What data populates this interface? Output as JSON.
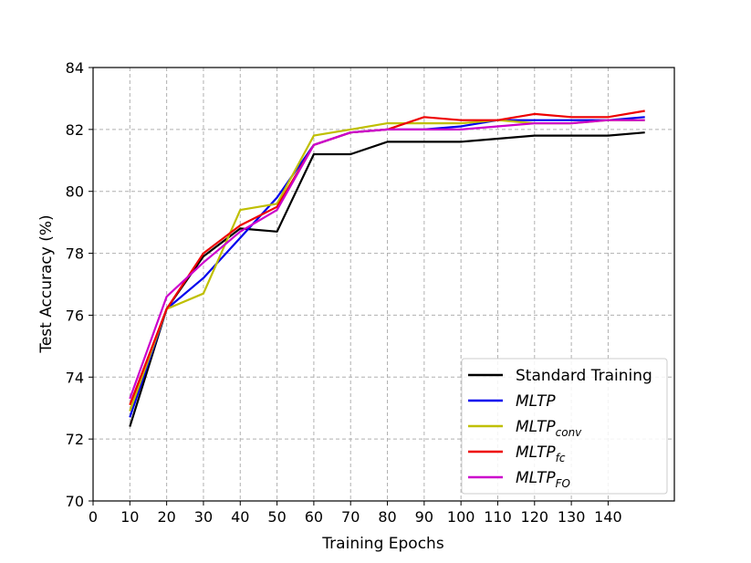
{
  "chart_data": {
    "type": "line",
    "title": "",
    "xlabel": "Training Epochs",
    "ylabel": "Test Accuracy (%)",
    "xlim": [
      0,
      158
    ],
    "ylim": [
      70,
      84
    ],
    "xticks": [
      0,
      10,
      20,
      30,
      40,
      50,
      60,
      70,
      80,
      90,
      100,
      110,
      120,
      130,
      140
    ],
    "yticks": [
      70,
      72,
      74,
      76,
      78,
      80,
      82,
      84
    ],
    "grid": true,
    "legend_position": "lower-right",
    "x": [
      10,
      20,
      30,
      40,
      50,
      60,
      70,
      80,
      90,
      100,
      110,
      120,
      130,
      140,
      150
    ],
    "series": [
      {
        "name": "Standard Training",
        "name_sub": "",
        "italic": false,
        "color": "#000000",
        "values": [
          72.4,
          76.2,
          77.9,
          78.8,
          78.7,
          81.2,
          81.2,
          81.6,
          81.6,
          81.6,
          81.7,
          81.8,
          81.8,
          81.8,
          81.9
        ]
      },
      {
        "name": "MLTP",
        "name_sub": "",
        "italic": true,
        "color": "#0000ee",
        "values": [
          72.7,
          76.2,
          77.2,
          78.5,
          79.8,
          81.5,
          81.9,
          82.0,
          82.0,
          82.1,
          82.3,
          82.3,
          82.3,
          82.3,
          82.4
        ]
      },
      {
        "name": "MLTP",
        "name_sub": "conv",
        "italic": true,
        "color": "#bfbf00",
        "values": [
          72.9,
          76.2,
          76.7,
          79.4,
          79.6,
          81.8,
          82.0,
          82.2,
          82.2,
          82.2,
          82.3,
          82.2,
          82.2,
          82.3,
          82.3
        ]
      },
      {
        "name": "MLTP",
        "name_sub": "fc",
        "italic": true,
        "color": "#ee0000",
        "values": [
          73.1,
          76.2,
          78.0,
          78.9,
          79.5,
          81.5,
          81.9,
          82.0,
          82.4,
          82.3,
          82.3,
          82.5,
          82.4,
          82.4,
          82.6
        ]
      },
      {
        "name": "MLTP",
        "name_sub": "FO",
        "italic": true,
        "color": "#cc00cc",
        "values": [
          73.3,
          76.6,
          77.7,
          78.7,
          79.4,
          81.5,
          81.9,
          82.0,
          82.0,
          82.0,
          82.1,
          82.2,
          82.2,
          82.3,
          82.3
        ]
      }
    ]
  }
}
